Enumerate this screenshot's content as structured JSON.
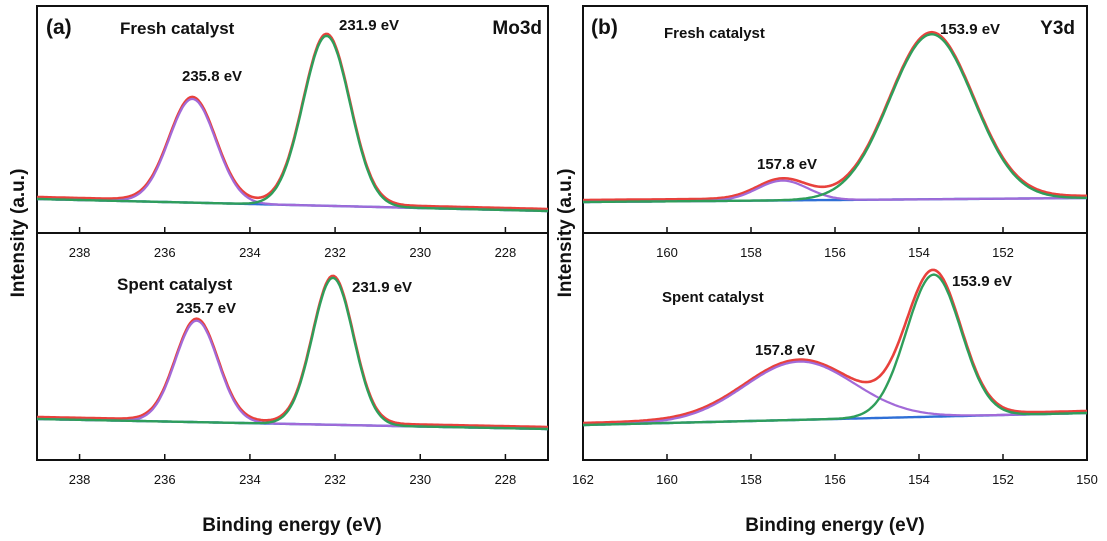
{
  "figure": {
    "ylabel": "Intensity (a.u.)",
    "xlabel": "Binding energy (eV)"
  },
  "colors": {
    "envelope": "#e8413c",
    "component_high": "#a26ad8",
    "component_low": "#2f9e5b",
    "background": "#2e6fd6",
    "frame": "#111111"
  },
  "chart_data": [
    {
      "panel": "a",
      "panel_label": "(a)",
      "element": "Mo3d",
      "type": "line",
      "xlim": [
        239,
        227
      ],
      "xticks": [
        238,
        236,
        234,
        232,
        230,
        228
      ],
      "subplots": [
        {
          "sample": "Fresh catalyst",
          "x_reversed": true,
          "peaks": [
            {
              "label": "235.8 eV",
              "center": 235.35,
              "relative_height": 0.61
            },
            {
              "label": "231.9 eV",
              "center": 232.2,
              "relative_height": 1.0
            }
          ]
        },
        {
          "sample": "Spent catalyst",
          "x_reversed": true,
          "peaks": [
            {
              "label": "235.7 eV",
              "center": 235.25,
              "relative_height": 0.69
            },
            {
              "label": "231.9 eV",
              "center": 232.05,
              "relative_height": 1.0
            }
          ]
        }
      ]
    },
    {
      "panel": "b",
      "panel_label": "(b)",
      "element": "Y3d",
      "type": "line",
      "xlim": [
        162,
        150
      ],
      "xticks": [
        162,
        160,
        158,
        156,
        154,
        152,
        150
      ],
      "subplots": [
        {
          "sample": "Fresh catalyst",
          "x_reversed": true,
          "peaks": [
            {
              "label": "157.8 eV",
              "center": 157.25,
              "relative_height": 0.12
            },
            {
              "label": "153.9 eV",
              "center": 153.7,
              "relative_height": 1.0
            }
          ]
        },
        {
          "sample": "Spent catalyst",
          "x_reversed": true,
          "peaks": [
            {
              "label": "157.8 eV",
              "center": 156.85,
              "relative_height": 0.41
            },
            {
              "label": "153.9 eV",
              "center": 153.65,
              "relative_height": 1.0
            }
          ]
        }
      ]
    }
  ]
}
